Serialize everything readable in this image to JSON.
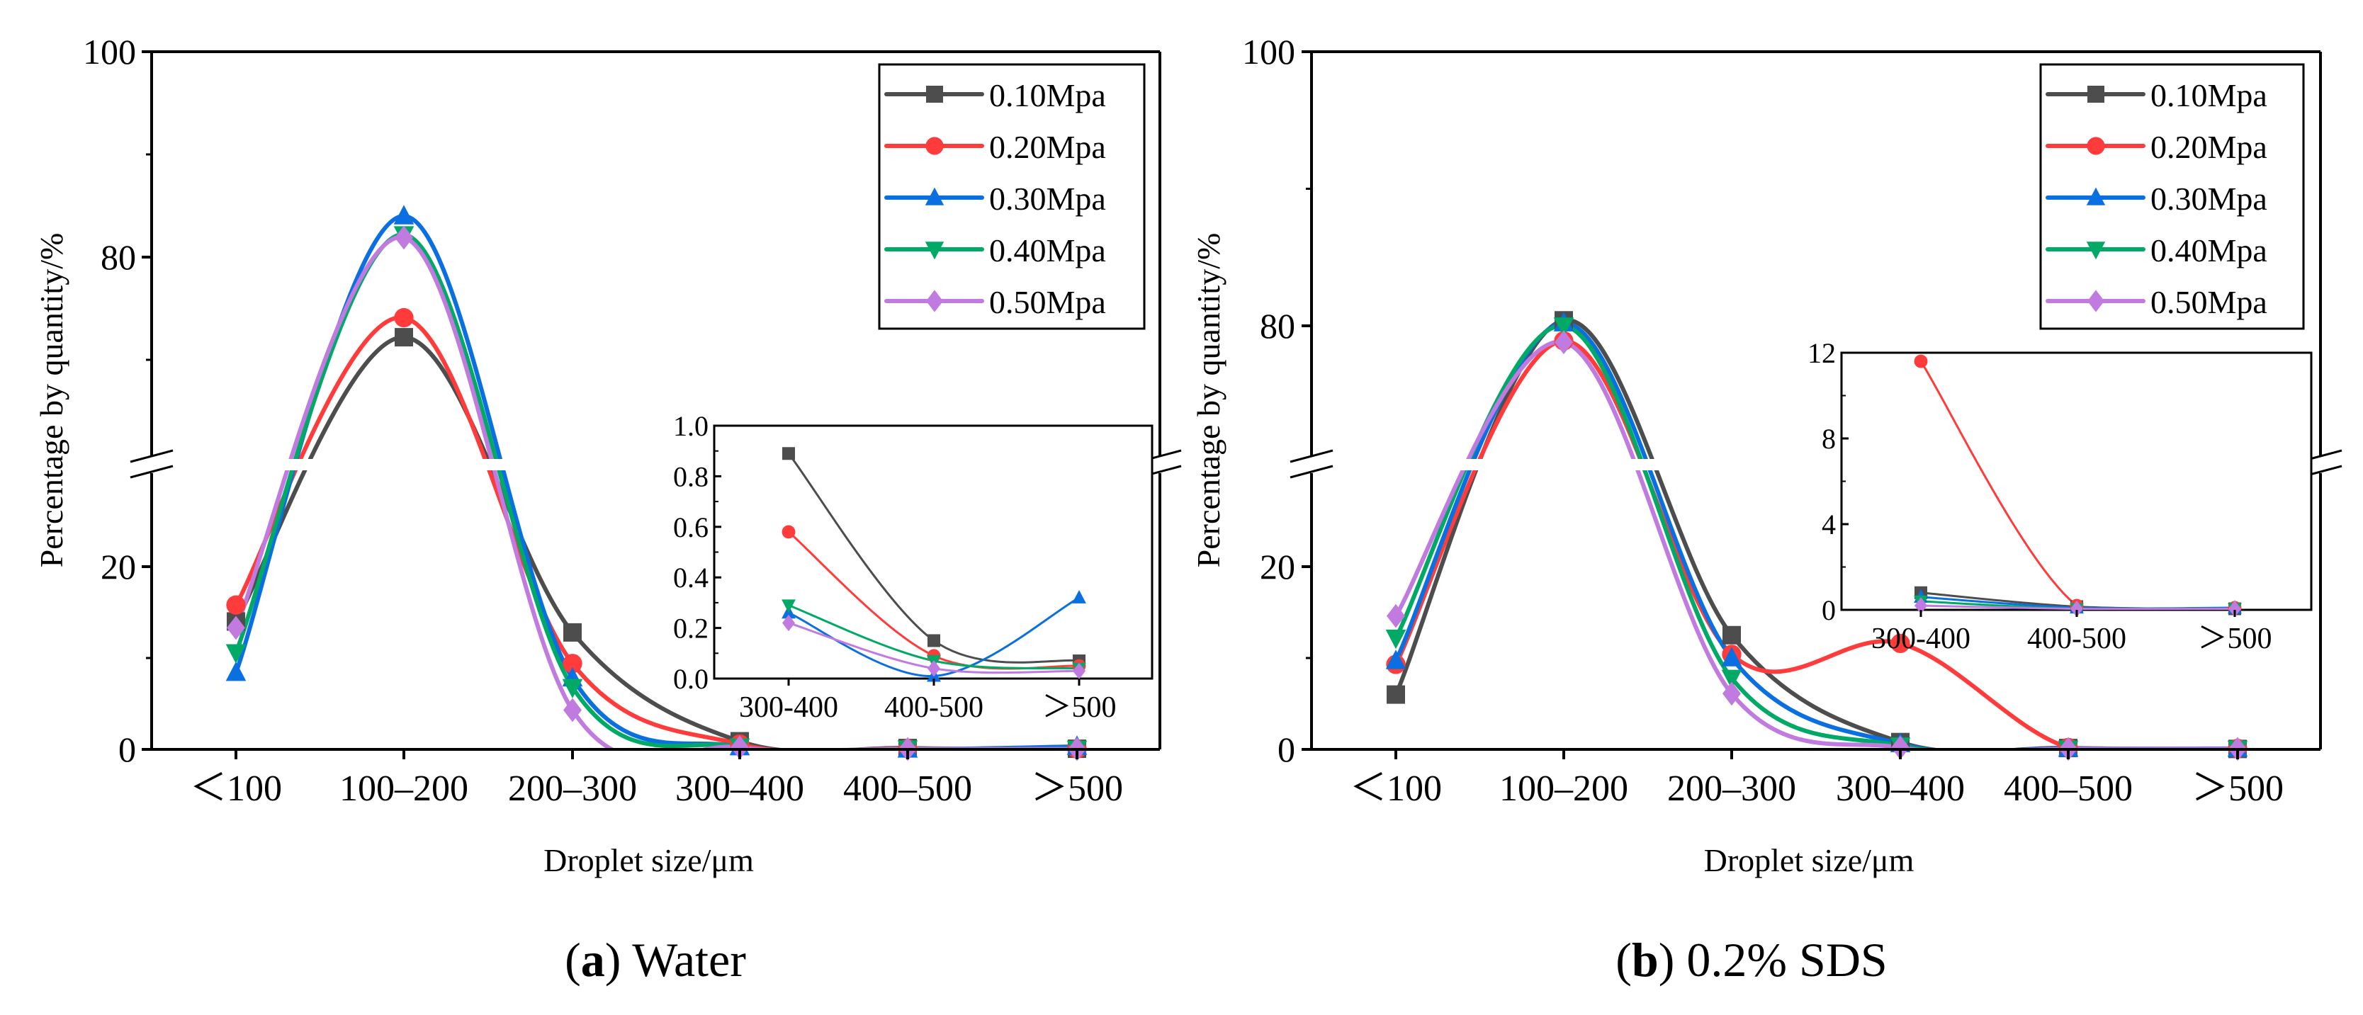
{
  "colors": {
    "0.10Mpa": "#4d4d4d",
    "0.20Mpa": "#ff3b3b",
    "0.30Mpa": "#0a6fe0",
    "0.40Mpa": "#00aa66",
    "0.50Mpa": "#c07ae0"
  },
  "chart_data": [
    {
      "type": "line",
      "panel": "a",
      "caption": {
        "label": "a",
        "text": "Water"
      },
      "xlabel": "Droplet size/μm",
      "ylabel": "Percentage by quantity/%",
      "categories": [
        "＜100",
        "100–200",
        "200–300",
        "300–400",
        "400–500",
        "＞500"
      ],
      "y_axis": {
        "broken": true,
        "lower_range": [
          0,
          31
        ],
        "upper_range": [
          60,
          100
        ],
        "major_ticks": [
          0,
          20,
          80,
          100
        ],
        "minor_ticks": [
          10,
          70,
          90
        ]
      },
      "legend": {
        "placement": "top-right",
        "entries": [
          "0.10Mpa",
          "0.20Mpa",
          "0.30Mpa",
          "0.40Mpa",
          "0.50Mpa"
        ]
      },
      "series": [
        {
          "name": "0.10Mpa",
          "marker": "square",
          "values": [
            14.0,
            72.2,
            12.8,
            0.89,
            0.15,
            0.07
          ]
        },
        {
          "name": "0.20Mpa",
          "marker": "circle",
          "values": [
            15.8,
            74.1,
            9.4,
            0.58,
            0.09,
            0.05
          ]
        },
        {
          "name": "0.30Mpa",
          "marker": "triangle-up",
          "values": [
            8.4,
            84.0,
            7.8,
            0.26,
            0.01,
            0.32
          ]
        },
        {
          "name": "0.40Mpa",
          "marker": "triangle-down",
          "values": [
            10.6,
            82.2,
            6.8,
            0.29,
            0.07,
            0.04
          ]
        },
        {
          "name": "0.50Mpa",
          "marker": "diamond",
          "values": [
            13.3,
            81.9,
            4.3,
            0.22,
            0.04,
            0.03
          ]
        }
      ],
      "inset": {
        "categories": [
          "300-400",
          "400-500",
          "＞500"
        ],
        "ylim": [
          0,
          1.0
        ],
        "major_ticks": [
          "0.0",
          "0.2",
          "0.4",
          "0.6",
          "0.8",
          "1.0"
        ],
        "major_tick_values": [
          0,
          0.2,
          0.4,
          0.6,
          0.8,
          1.0
        ],
        "minor_tick_values": [
          0.1,
          0.3,
          0.5,
          0.7,
          0.9
        ]
      }
    },
    {
      "type": "line",
      "panel": "b",
      "caption": {
        "label": "b",
        "text": "0.2% SDS"
      },
      "xlabel": "Droplet size/μm",
      "ylabel": "Percentage by quantity/%",
      "categories": [
        "＜100",
        "100–200",
        "200–300",
        "300–400",
        "400–500",
        "＞500"
      ],
      "y_axis": {
        "broken": true,
        "lower_range": [
          0,
          31
        ],
        "upper_range": [
          70,
          100
        ],
        "major_ticks": [
          0,
          20,
          80,
          100
        ],
        "minor_ticks": [
          10,
          90
        ]
      },
      "legend": {
        "placement": "top-right",
        "entries": [
          "0.10Mpa",
          "0.20Mpa",
          "0.30Mpa",
          "0.40Mpa",
          "0.50Mpa"
        ]
      },
      "series": [
        {
          "name": "0.10Mpa",
          "marker": "square",
          "values": [
            6.0,
            80.4,
            12.5,
            0.8,
            0.15,
            0.05
          ]
        },
        {
          "name": "0.20Mpa",
          "marker": "circle",
          "values": [
            9.3,
            78.9,
            10.4,
            11.6,
            0.2,
            0.1
          ]
        },
        {
          "name": "0.30Mpa",
          "marker": "triangle-up",
          "values": [
            9.7,
            80.2,
            10.0,
            0.6,
            0.1,
            0.1
          ]
        },
        {
          "name": "0.40Mpa",
          "marker": "triangle-down",
          "values": [
            12.2,
            80.0,
            7.8,
            0.4,
            0.05,
            0.05
          ]
        },
        {
          "name": "0.50Mpa",
          "marker": "diamond",
          "values": [
            14.6,
            78.8,
            6.1,
            0.2,
            0.05,
            0.05
          ]
        }
      ],
      "inset": {
        "categories": [
          "300-400",
          "400-500",
          "＞500"
        ],
        "ylim": [
          0,
          12
        ],
        "major_ticks": [
          "0",
          "4",
          "8",
          "12"
        ],
        "major_tick_values": [
          0,
          4,
          8,
          12
        ],
        "minor_tick_values": [
          2,
          6,
          10
        ]
      }
    }
  ]
}
